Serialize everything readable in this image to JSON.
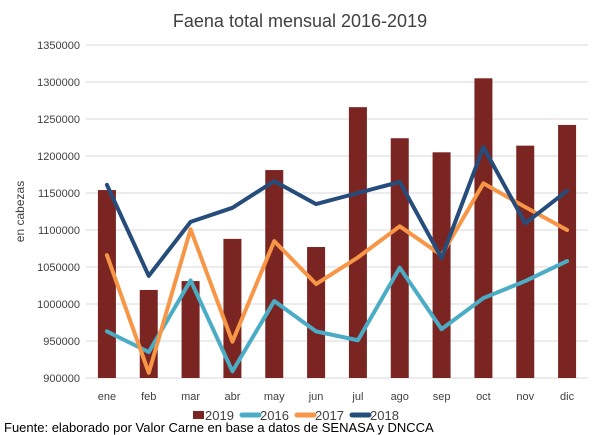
{
  "chart_data": {
    "type": "bar+line",
    "title": "Faena total mensual 2016-2019",
    "ylabel": "en cabezas",
    "xlabel": "",
    "ylim": [
      900000,
      1350000
    ],
    "yticks": [
      "900000",
      "950000",
      "1000000",
      "1050000",
      "1100000",
      "1150000",
      "1200000",
      "1250000",
      "1300000",
      "1350000"
    ],
    "categories": [
      "ene",
      "feb",
      "mar",
      "abr",
      "may",
      "jun",
      "jul",
      "ago",
      "sep",
      "oct",
      "nov",
      "dic"
    ],
    "legend_position": "bottom",
    "series": [
      {
        "name": "2019",
        "kind": "bar",
        "color": "#7b2523",
        "values": [
          1154000,
          1019000,
          1031000,
          1088000,
          1181000,
          1077000,
          1266000,
          1224000,
          1205000,
          1305000,
          1214000,
          1242000
        ]
      },
      {
        "name": "2016",
        "kind": "line",
        "color": "#4bacc6",
        "values": [
          963000,
          935000,
          1032000,
          909000,
          1004000,
          963000,
          951000,
          1049000,
          966000,
          1008000,
          1031000,
          1058000
        ]
      },
      {
        "name": "2017",
        "kind": "line",
        "color": "#f79646",
        "values": [
          1066000,
          907000,
          1101000,
          949000,
          1085000,
          1027000,
          1063000,
          1105000,
          1066000,
          1163000,
          1131000,
          1100000
        ]
      },
      {
        "name": "2018",
        "kind": "line",
        "color": "#254c7a",
        "values": [
          1161000,
          1038000,
          1111000,
          1130000,
          1166000,
          1135000,
          1150000,
          1165000,
          1062000,
          1212000,
          1109000,
          1153000
        ]
      }
    ]
  },
  "footer": "Fuente: elaborado por Valor Carne en base a datos de SENASA y DNCCA"
}
